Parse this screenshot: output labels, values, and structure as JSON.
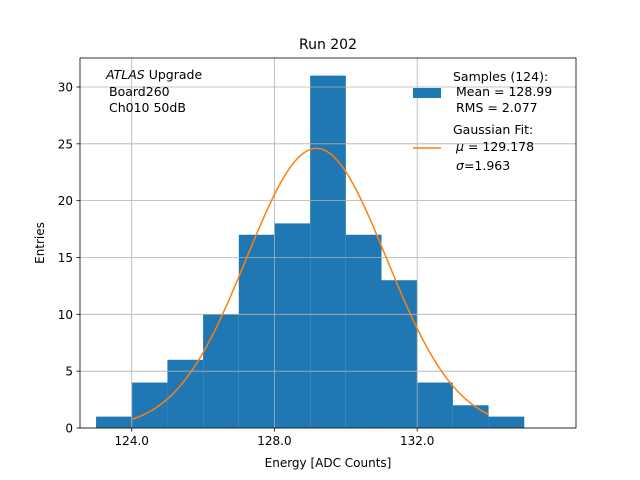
{
  "chart_data": {
    "type": "bar",
    "title": "Run 202",
    "xlabel": "Energy [ADC Counts]",
    "ylabel": "Entries",
    "xlim": [
      122.55,
      136.45
    ],
    "ylim": [
      0,
      32.55
    ],
    "grid": true,
    "bin_edges": [
      123.0,
      124.0,
      125.0,
      126.0,
      127.0,
      128.0,
      129.0,
      130.0,
      131.0,
      132.0,
      133.0,
      134.0,
      135.0
    ],
    "counts": [
      1,
      4,
      6,
      10,
      17,
      18,
      31,
      17,
      13,
      4,
      2,
      1
    ],
    "x_ticks": [
      124.0,
      128.0,
      132.0
    ],
    "x_tick_labels": [
      "124.0",
      "128.0",
      "132.0"
    ],
    "y_ticks": [
      0,
      5,
      10,
      15,
      20,
      25,
      30
    ],
    "y_tick_labels": [
      "0",
      "5",
      "10",
      "15",
      "20",
      "25",
      "30"
    ],
    "fit": {
      "mu": 129.178,
      "sigma": 1.963,
      "amplitude": 24.6,
      "x_range": [
        124.0,
        134.0
      ]
    },
    "annotation": {
      "italic": "ATLAS",
      "rest": " Upgrade",
      "line2": "Board260",
      "line3": "Ch010 50dB"
    },
    "legend": {
      "placement": "top-right",
      "samples": {
        "line1": "Samples (124):",
        "line2": "Mean = 128.99",
        "line3": "RMS = 2.077"
      },
      "fit": {
        "line1": "Gaussian Fit:",
        "line2_prefix": "μ",
        "line2_value": " = 129.178",
        "line3_prefix": "σ",
        "line3_value": "=1.963"
      }
    },
    "colors": {
      "bars": "#1f77b4",
      "fit": "#ff7f0e",
      "grid": "#b0b0b0"
    }
  }
}
